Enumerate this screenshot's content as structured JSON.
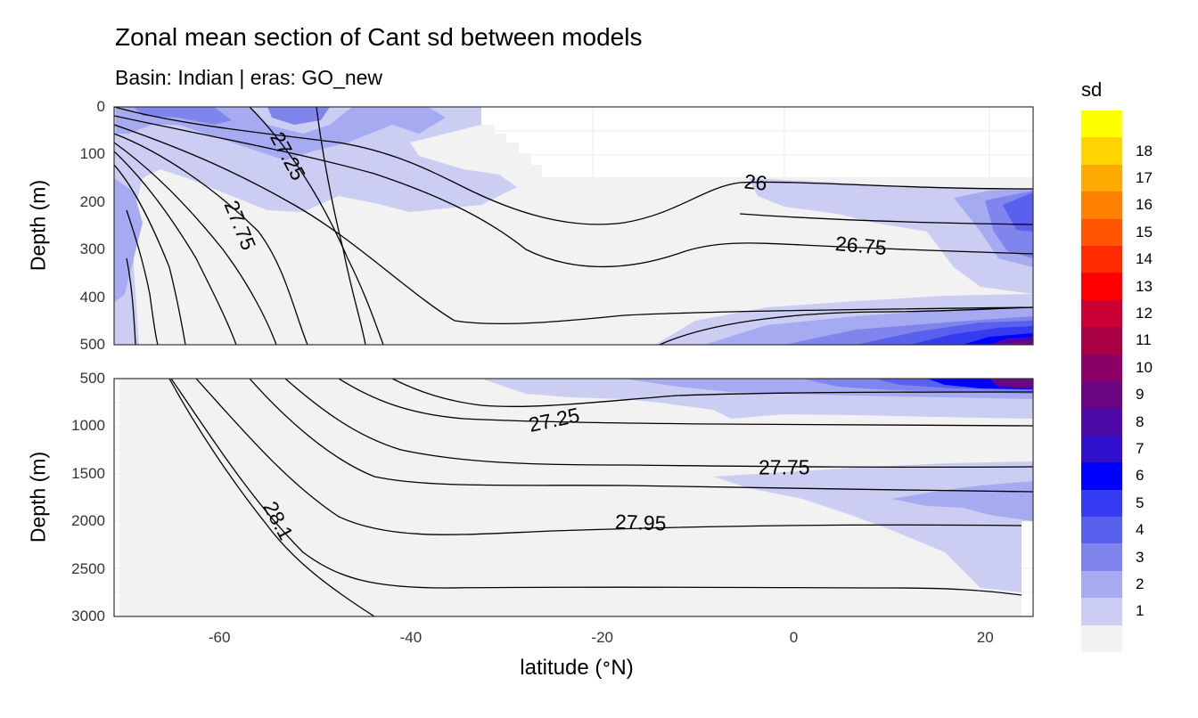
{
  "chart_data": {
    "type": "heatmap",
    "title": "Zonal mean section of Cant sd between models",
    "subtitle": "Basin: Indian | eras: GO_new",
    "xlabel_text": "latitude (",
    "xlabel_degree": "°",
    "xlabel_unit": "N)",
    "ylabel": "Depth (m)",
    "xlim": [
      -71,
      25
    ],
    "x_ticks": [
      -60,
      -40,
      -20,
      0,
      20
    ],
    "x_tick_labels": [
      "-60",
      "-40",
      "-20",
      "0",
      "20"
    ],
    "legend": {
      "title": "sd",
      "placement": "right",
      "levels": [
        "",
        "1",
        "2",
        "3",
        "4",
        "5",
        "6",
        "7",
        "8",
        "9",
        "10",
        "11",
        "12",
        "13",
        "14",
        "15",
        "16",
        "17",
        "18"
      ],
      "colors": [
        "#f2f2f2",
        "#cbcdf2",
        "#a6aaf0",
        "#8085ee",
        "#5a60ee",
        "#353bf0",
        "#0000ff",
        "#3010cc",
        "#4d0aa6",
        "#6b0582",
        "#8a0066",
        "#aa0044",
        "#cc0033",
        "#ff0000",
        "#ff2a00",
        "#ff5500",
        "#ff7f00",
        "#ffaa00",
        "#ffd400",
        "#ffff00"
      ]
    },
    "panels": [
      {
        "name": "upper",
        "depth_range": [
          0,
          500
        ],
        "y_ticks": [
          0,
          100,
          200,
          300,
          400,
          500
        ],
        "y_tick_labels": [
          "0",
          "100",
          "200",
          "300",
          "400",
          "500"
        ],
        "contour_labels": [
          {
            "text": "27.25",
            "lat": -53,
            "depth": 105,
            "angle": 62
          },
          {
            "text": "27.75",
            "lat": -58,
            "depth": 250,
            "angle": 68
          },
          {
            "text": "26",
            "lat": -4,
            "depth": 162,
            "angle": 6
          },
          {
            "text": "26.75",
            "lat": 7,
            "depth": 295,
            "angle": 5
          }
        ]
      },
      {
        "name": "lower",
        "depth_range": [
          500,
          3000
        ],
        "y_ticks": [
          500,
          1000,
          1500,
          2000,
          2500,
          3000
        ],
        "y_tick_labels": [
          "500",
          "1000",
          "1500",
          "2000",
          "2500",
          "3000"
        ],
        "contour_labels": [
          {
            "text": "27.25",
            "lat": -25,
            "depth": 950,
            "angle": -12
          },
          {
            "text": "27.75",
            "lat": -1,
            "depth": 1450,
            "angle": 0
          },
          {
            "text": "27.95",
            "lat": -16,
            "depth": 2030,
            "angle": 2
          },
          {
            "text": "28.1",
            "lat": -54,
            "depth": 2000,
            "angle": 62
          }
        ]
      }
    ]
  }
}
